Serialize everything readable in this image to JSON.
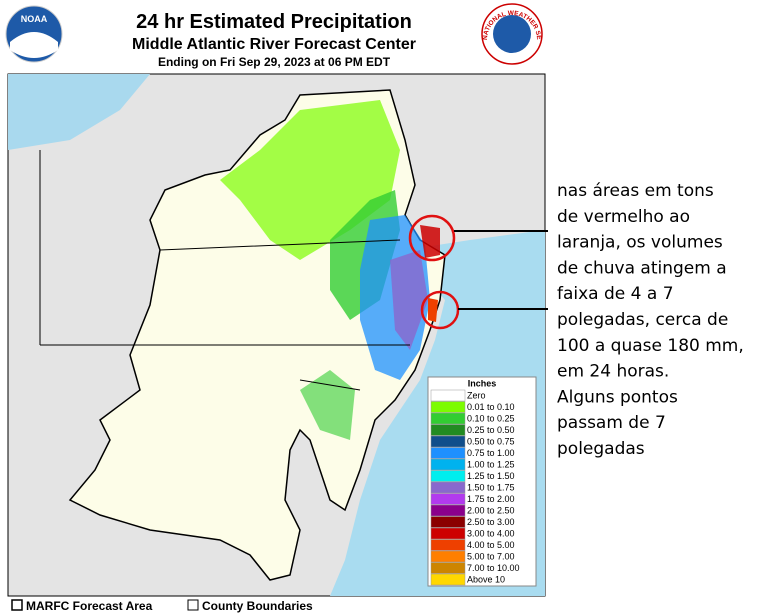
{
  "header": {
    "title": "24 hr Estimated Precipitation",
    "subtitle": "Middle Atlantic River Forecast Center",
    "date": "Ending on Fri Sep 29, 2023 at 06 PM EDT"
  },
  "logos": {
    "left": "NOAA",
    "right": "NATIONAL WEATHER SERVICE"
  },
  "legend": {
    "title": "Inches",
    "items": [
      {
        "label": "Zero",
        "color": "#ffffff"
      },
      {
        "label": "0.01 to 0.10",
        "color": "#7cfc00"
      },
      {
        "label": "0.10 to 0.25",
        "color": "#32cd32"
      },
      {
        "label": "0.25 to 0.50",
        "color": "#228b22"
      },
      {
        "label": "0.50 to 0.75",
        "color": "#104e8b"
      },
      {
        "label": "0.75 to 1.00",
        "color": "#1e90ff"
      },
      {
        "label": "1.00 to 1.25",
        "color": "#00b2ee"
      },
      {
        "label": "1.25 to 1.50",
        "color": "#00eeee"
      },
      {
        "label": "1.50 to 1.75",
        "color": "#8968cd"
      },
      {
        "label": "1.75 to 2.00",
        "color": "#b23aee"
      },
      {
        "label": "2.00 to 2.50",
        "color": "#8b008b"
      },
      {
        "label": "2.50 to 3.00",
        "color": "#8b0000"
      },
      {
        "label": "3.00 to 4.00",
        "color": "#cd0000"
      },
      {
        "label": "4.00 to 5.00",
        "color": "#ee4000"
      },
      {
        "label": "5.00 to 7.00",
        "color": "#ff7f00"
      },
      {
        "label": "7.00 to 10.00",
        "color": "#cd8500"
      },
      {
        "label": "Above 10",
        "color": "#ffd700"
      }
    ]
  },
  "footer": {
    "items": [
      "MARFC Forecast Area",
      "County Boundaries"
    ]
  },
  "annotation": {
    "lines": [
      "nas áreas em tons",
      "de vermelho ao",
      "laranja, os volumes",
      "de chuva atingem a",
      "faixa de 4 a 7",
      "polegadas, cerca de",
      "100 a quase 180 mm,",
      "em 24 horas.",
      "Alguns pontos",
      "passam de 7",
      "polegadas"
    ]
  }
}
